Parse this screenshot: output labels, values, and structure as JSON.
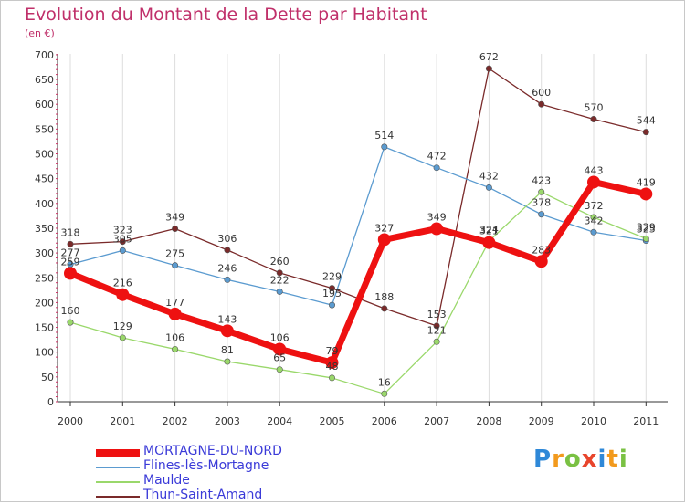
{
  "title": "Evolution du Montant de la Dette par Habitant",
  "subtitle": "(en €)",
  "logo": {
    "text": "Proxiti",
    "letters": [
      {
        "ch": "P",
        "color": "#2e88d8"
      },
      {
        "ch": "r",
        "color": "#f29a1d"
      },
      {
        "ch": "o",
        "color": "#7ac143"
      },
      {
        "ch": "x",
        "color": "#e8452c"
      },
      {
        "ch": "i",
        "color": "#2e88d8"
      },
      {
        "ch": "t",
        "color": "#f29a1d"
      },
      {
        "ch": "i",
        "color": "#7ac143"
      }
    ]
  },
  "chart_data": {
    "type": "line",
    "x": [
      "2000",
      "2001",
      "2002",
      "2003",
      "2004",
      "2005",
      "2006",
      "2007",
      "2008",
      "2009",
      "2010",
      "2011"
    ],
    "ylim": [
      0,
      700
    ],
    "yticks": [
      0,
      50,
      100,
      150,
      200,
      250,
      300,
      350,
      400,
      450,
      500,
      550,
      600,
      650,
      700
    ],
    "grid": "vertical",
    "legend_position": "bottom-left",
    "series": [
      {
        "name": "MORTAGNE-DU-NORD",
        "color": "#ee1111",
        "width": 7,
        "values": [
          259,
          216,
          177,
          143,
          106,
          79,
          327,
          349,
          321,
          283,
          443,
          419
        ],
        "labels": [
          "259",
          "216",
          "177",
          "143",
          "106",
          "79",
          "327",
          "349",
          "321",
          "283",
          "443",
          "419"
        ]
      },
      {
        "name": "Flines-lès-Mortagne",
        "color": "#5b9bd0",
        "width": 1.3,
        "values": [
          277,
          305,
          275,
          246,
          222,
          195,
          514,
          472,
          432,
          378,
          342,
          325
        ],
        "labels": [
          "277",
          "305",
          "275",
          "246",
          "222",
          "195",
          "514",
          "472",
          "432",
          "378",
          "342",
          "325"
        ]
      },
      {
        "name": "Maulde",
        "color": "#9ad86b",
        "width": 1.3,
        "values": [
          160,
          129,
          106,
          81,
          65,
          48,
          16,
          121,
          324,
          423,
          372,
          329
        ],
        "labels": [
          "160",
          "129",
          "106",
          "81",
          "65",
          "48",
          "16",
          "121",
          "324",
          "423",
          "372",
          "329"
        ]
      },
      {
        "name": "Thun-Saint-Amand",
        "color": "#7a2a2a",
        "width": 1.3,
        "values": [
          318,
          323,
          349,
          306,
          260,
          229,
          188,
          153,
          672,
          600,
          570,
          544
        ],
        "labels": [
          "318",
          "323",
          "349",
          "306",
          "260",
          "229",
          "188",
          "153",
          "672",
          "600",
          "570",
          "544"
        ]
      }
    ]
  }
}
